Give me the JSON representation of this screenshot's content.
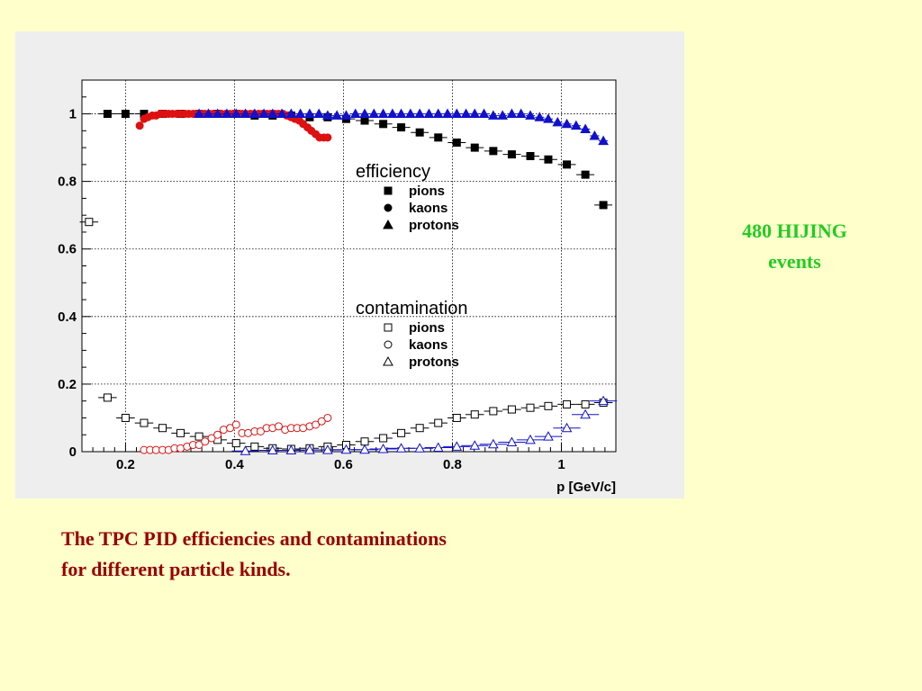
{
  "side_note": {
    "line1": "480 HIJING",
    "line2": "events"
  },
  "caption": {
    "line1": "The TPC PID efficiencies and contaminations",
    "line2": "for different particle kinds."
  },
  "chart_data": {
    "type": "scatter",
    "title": "",
    "xlabel": "p [GeV/c]",
    "ylabel": "",
    "xlim": [
      0.12,
      1.1
    ],
    "ylim": [
      0,
      1.1
    ],
    "x_ticks": [
      0.2,
      0.4,
      0.6,
      0.8,
      1
    ],
    "x_tick_labels": [
      "0.2",
      "0.4",
      "0.6",
      "0.8",
      "1"
    ],
    "y_ticks": [
      0,
      0.2,
      0.4,
      0.6,
      0.8,
      1
    ],
    "y_tick_labels": [
      "0",
      "0.2",
      "0.4",
      "0.6",
      "0.8",
      "1"
    ],
    "grid": true,
    "colors": {
      "pions": "#000000",
      "kaons": "#dd1111",
      "protons": "#1111cc"
    },
    "legends": [
      {
        "title": "efficiency",
        "entries": [
          {
            "label": "pions",
            "marker": "filled-square"
          },
          {
            "label": "kaons",
            "marker": "filled-circle"
          },
          {
            "label": "protons",
            "marker": "filled-triangle"
          }
        ]
      },
      {
        "title": "contamination",
        "entries": [
          {
            "label": "pions",
            "marker": "open-square"
          },
          {
            "label": "kaons",
            "marker": "open-circle"
          },
          {
            "label": "protons",
            "marker": "open-triangle"
          }
        ]
      }
    ],
    "series": [
      {
        "group": "efficiency",
        "name": "pions",
        "marker": "filled-square",
        "color": "#000000",
        "x": [
          0.167,
          0.2,
          0.234,
          0.268,
          0.301,
          0.335,
          0.369,
          0.403,
          0.437,
          0.47,
          0.504,
          0.538,
          0.571,
          0.605,
          0.639,
          0.673,
          0.706,
          0.74,
          0.774,
          0.808,
          0.841,
          0.875,
          0.909,
          0.943,
          0.976,
          1.01,
          1.044,
          1.077
        ],
        "y": [
          1.0,
          1.0,
          1.0,
          1.0,
          1.0,
          1.0,
          1.0,
          1.0,
          0.995,
          0.995,
          0.995,
          0.99,
          0.99,
          0.985,
          0.98,
          0.97,
          0.96,
          0.945,
          0.93,
          0.915,
          0.9,
          0.89,
          0.88,
          0.875,
          0.865,
          0.85,
          0.82,
          0.73
        ]
      },
      {
        "group": "efficiency",
        "name": "kaons",
        "marker": "filled-circle",
        "color": "#dd1111",
        "x": [
          0.226,
          0.234,
          0.241,
          0.249,
          0.256,
          0.264,
          0.271,
          0.279,
          0.286,
          0.294,
          0.301,
          0.309,
          0.316,
          0.324,
          0.331,
          0.339,
          0.346,
          0.354,
          0.361,
          0.369,
          0.376,
          0.384,
          0.391,
          0.399,
          0.406,
          0.414,
          0.421,
          0.429,
          0.436,
          0.444,
          0.451,
          0.459,
          0.466,
          0.474,
          0.481,
          0.489,
          0.496,
          0.504,
          0.511,
          0.519,
          0.526,
          0.534,
          0.541,
          0.549,
          0.556,
          0.564,
          0.571
        ],
        "y": [
          0.965,
          0.985,
          0.99,
          0.995,
          0.995,
          1.0,
          1.0,
          1.0,
          1.0,
          1.0,
          1.0,
          1.0,
          1.0,
          1.0,
          1.0,
          1.0,
          1.0,
          1.0,
          1.0,
          1.0,
          1.0,
          1.0,
          1.0,
          1.0,
          1.0,
          1.0,
          1.0,
          1.0,
          1.0,
          1.0,
          1.0,
          1.0,
          1.0,
          1.0,
          1.0,
          1.0,
          0.995,
          0.99,
          0.985,
          0.98,
          0.97,
          0.96,
          0.95,
          0.94,
          0.93,
          0.93,
          0.93
        ]
      },
      {
        "group": "efficiency",
        "name": "protons",
        "marker": "filled-triangle",
        "color": "#1111cc",
        "x": [
          0.335,
          0.352,
          0.369,
          0.386,
          0.403,
          0.42,
          0.437,
          0.454,
          0.47,
          0.487,
          0.504,
          0.521,
          0.538,
          0.555,
          0.571,
          0.588,
          0.605,
          0.622,
          0.639,
          0.656,
          0.673,
          0.69,
          0.706,
          0.723,
          0.74,
          0.757,
          0.774,
          0.791,
          0.808,
          0.825,
          0.841,
          0.858,
          0.875,
          0.892,
          0.909,
          0.926,
          0.943,
          0.96,
          0.976,
          0.993,
          1.01,
          1.027,
          1.044,
          1.061,
          1.077
        ],
        "y": [
          1.0,
          1.0,
          1.0,
          1.0,
          1.0,
          1.0,
          1.0,
          1.0,
          1.0,
          1.0,
          1.0,
          1.0,
          1.0,
          1.0,
          0.995,
          0.995,
          0.995,
          1.0,
          1.0,
          1.0,
          1.0,
          1.0,
          1.0,
          1.0,
          1.0,
          1.0,
          1.0,
          1.0,
          1.0,
          1.0,
          1.0,
          1.0,
          0.995,
          0.995,
          1.0,
          1.0,
          0.995,
          0.99,
          0.985,
          0.975,
          0.97,
          0.965,
          0.955,
          0.935,
          0.92
        ]
      },
      {
        "group": "contamination",
        "name": "pions",
        "marker": "open-square",
        "color": "#000000",
        "x": [
          0.133,
          0.167,
          0.2,
          0.234,
          0.268,
          0.301,
          0.335,
          0.369,
          0.403,
          0.437,
          0.47,
          0.504,
          0.538,
          0.571,
          0.605,
          0.639,
          0.673,
          0.706,
          0.74,
          0.774,
          0.808,
          0.841,
          0.875,
          0.909,
          0.943,
          0.976,
          1.01,
          1.044,
          1.077
        ],
        "y": [
          0.68,
          0.16,
          0.1,
          0.085,
          0.07,
          0.055,
          0.045,
          0.035,
          0.025,
          0.015,
          0.01,
          0.008,
          0.01,
          0.015,
          0.02,
          0.03,
          0.04,
          0.055,
          0.07,
          0.085,
          0.1,
          0.11,
          0.12,
          0.125,
          0.13,
          0.135,
          0.14,
          0.14,
          0.145
        ]
      },
      {
        "group": "contamination",
        "name": "kaons",
        "marker": "open-circle",
        "color": "#dd1111",
        "x": [
          0.234,
          0.245,
          0.256,
          0.268,
          0.279,
          0.29,
          0.301,
          0.313,
          0.324,
          0.335,
          0.346,
          0.358,
          0.369,
          0.38,
          0.392,
          0.403,
          0.414,
          0.425,
          0.437,
          0.448,
          0.459,
          0.47,
          0.481,
          0.493,
          0.504,
          0.515,
          0.526,
          0.538,
          0.549,
          0.56,
          0.571
        ],
        "y": [
          0.005,
          0.005,
          0.005,
          0.005,
          0.005,
          0.01,
          0.01,
          0.015,
          0.02,
          0.02,
          0.03,
          0.04,
          0.05,
          0.065,
          0.07,
          0.08,
          0.055,
          0.055,
          0.06,
          0.06,
          0.07,
          0.07,
          0.075,
          0.065,
          0.07,
          0.07,
          0.07,
          0.075,
          0.08,
          0.09,
          0.1
        ]
      },
      {
        "group": "contamination",
        "name": "protons",
        "marker": "open-triangle",
        "color": "#1111cc",
        "x": [
          0.42,
          0.47,
          0.504,
          0.538,
          0.571,
          0.605,
          0.639,
          0.673,
          0.706,
          0.74,
          0.774,
          0.808,
          0.841,
          0.875,
          0.909,
          0.943,
          0.976,
          1.01,
          1.044,
          1.077
        ],
        "y": [
          0.002,
          0.004,
          0.004,
          0.005,
          0.005,
          0.006,
          0.006,
          0.008,
          0.01,
          0.01,
          0.012,
          0.015,
          0.018,
          0.022,
          0.028,
          0.035,
          0.045,
          0.07,
          0.11,
          0.15
        ]
      }
    ]
  }
}
